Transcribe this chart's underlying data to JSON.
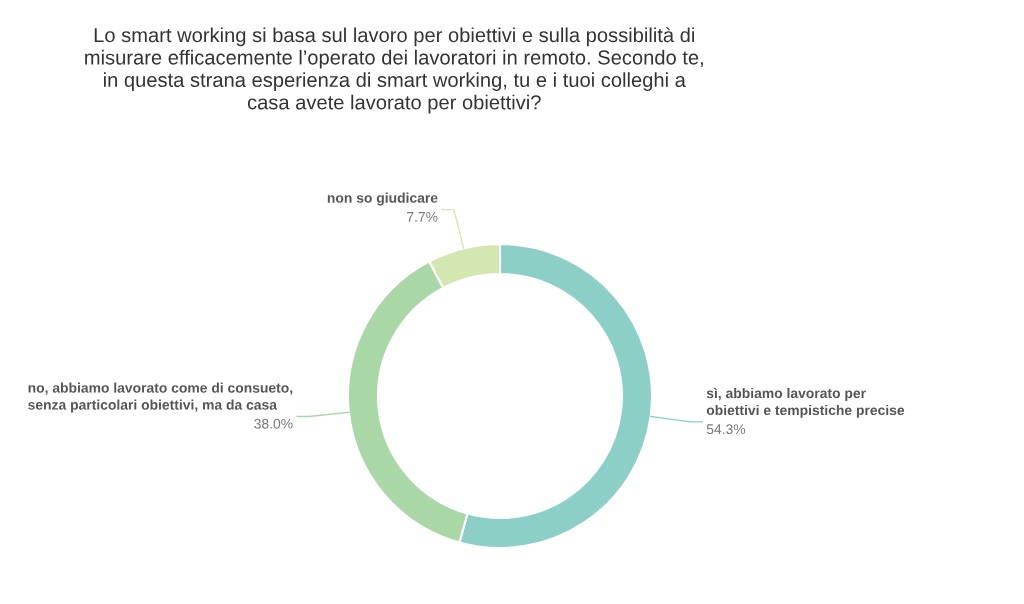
{
  "chart_data": {
    "type": "donut",
    "title": "Lo smart working si basa sul lavoro per obiettivi e sulla possibilità di\nmisurare efficacemente l’operato dei lavoratori in remoto. Secondo te,\nin questa strana esperienza di smart working, tu e i tuoi colleghi a\ncasa avete lavorato per obiettivi?",
    "categories": [
      "sì, abbiamo lavorato per\nobiettivi e tempistiche precise",
      "no, abbiamo lavorato come di consueto,\nsenza particolari obiettivi, ma da casa",
      "non so giudicare"
    ],
    "values": [
      54.3,
      38.0,
      7.7
    ],
    "colors": [
      "#8bcfc7",
      "#a9d8a6",
      "#d3e8b0"
    ],
    "value_labels": [
      "54.3%",
      "38.0%",
      "7.7%"
    ],
    "legend": false
  }
}
